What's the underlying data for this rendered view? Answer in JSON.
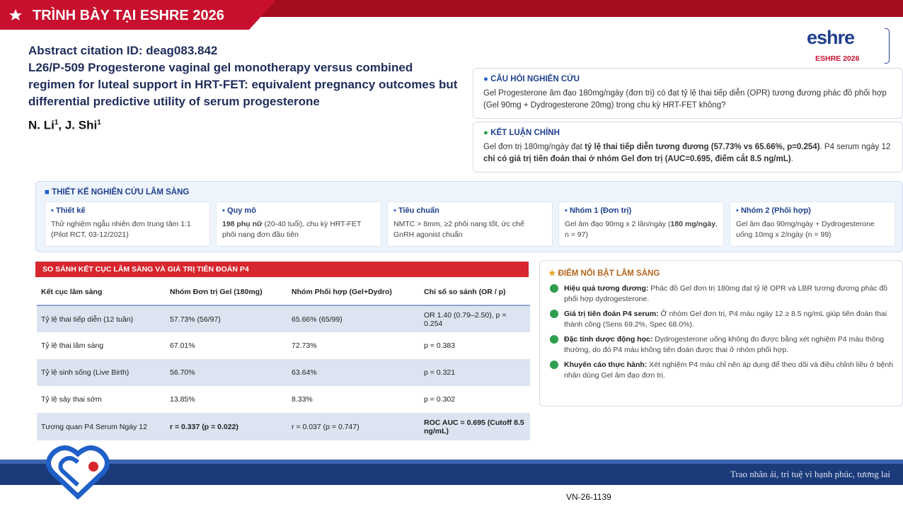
{
  "header": {
    "badge": "TRÌNH BÀY TẠI ESHRE 2026",
    "logo_word": "eshre",
    "logo_caption": "ESHRE 2026"
  },
  "abstract": {
    "citation": "Abstract citation ID: deag083.842",
    "title": "L26/P-509 Progesterone vaginal gel monotherapy versus combined regimen for luteal support in HRT-FET: equivalent pregnancy outcomes but differential predictive utility of serum progesterone",
    "authors": [
      {
        "text": "N. Li",
        "sup": "1"
      },
      {
        "text": ", J. Shi",
        "sup": "1"
      }
    ]
  },
  "question": {
    "title": "CÂU HỎI NGHIÊN CỨU",
    "text": "Gel Progesterone âm đạo 180mg/ngày (đơn trị) có đạt tỷ lệ thai tiếp diễn (OPR) tương đương phác đồ phối hợp (Gel 90mg + Dydrogesterone 20mg) trong chu kỳ HRT-FET không?"
  },
  "conclusion": {
    "title": "KẾT LUẬN CHÍNH",
    "runs": [
      {
        "text": "Gel đơn trị 180mg/ngày đạt "
      },
      {
        "text": "tỷ lệ thai tiếp diễn tương đương (57.73% vs 65.66%, p=0.254)",
        "bold": true
      },
      {
        "text": ". P4 serum ngày 12 "
      },
      {
        "text": "chỉ có giá trị tiên đoán thai ở nhóm Gel đơn trị (AUC=0.695, điểm cắt 8.5 ng/mL)",
        "bold": true
      },
      {
        "text": "."
      }
    ]
  },
  "design": {
    "title": "THIẾT KẾ NGHIÊN CỨU LÂM SÀNG",
    "cards": [
      {
        "title": "Thiết kế",
        "runs": [
          {
            "text": "Thử nghiệm ngẫu nhiên đơn trung tâm 1:1 (Pilot RCT, 03-12/2021)"
          }
        ]
      },
      {
        "title": "Quy mô",
        "runs": [
          {
            "text": "198 phụ nữ",
            "bold": true
          },
          {
            "text": " (20-40 tuổi), chu kỳ HRT-FET phôi nang đơn đầu tiên"
          }
        ]
      },
      {
        "title": "Tiêu chuẩn",
        "runs": [
          {
            "text": "NMTC > 8mm, ≥2 phôi nang tốt, ức chế GnRH agonist chuẩn"
          }
        ]
      },
      {
        "title": "Nhóm 1 (Đơn trị)",
        "runs": [
          {
            "text": "Gel âm đạo 90mg x 2 lần/ngày ("
          },
          {
            "text": "180 mg/ngày",
            "bold": true
          },
          {
            "text": ", n = 97)"
          }
        ]
      },
      {
        "title": "Nhóm 2 (Phối hợp)",
        "runs": [
          {
            "text": "Gel âm đạo 90mg/ngày + Dydrogesterone uống 10mg x 2/ngày (n = 99)"
          }
        ]
      }
    ]
  },
  "table": {
    "title": "SO SÁNH KẾT CỤC LÂM SÀNG VÀ GIÁ TRỊ TIÊN ĐOÁN P4",
    "headers": [
      "Kết cục lâm sàng",
      "Nhóm Đơn trị Gel (180mg)",
      "Nhóm Phối hợp (Gel+Dydro)",
      "Chỉ số so sánh (OR / p)"
    ],
    "rows": [
      [
        "Tỷ lệ thai tiếp diễn (12 tuần)",
        "57.73% (56/97)",
        "65.66% (65/99)",
        "OR 1.40 (0.79–2.50), p = 0.254"
      ],
      [
        "Tỷ lệ thai lâm sàng",
        "67.01%",
        "72.73%",
        "p = 0.383"
      ],
      [
        "Tỷ lệ sinh sống (Live Birth)",
        "56.70%",
        "63.64%",
        "p = 0.321"
      ],
      [
        "Tỷ lệ sảy thai sớm",
        "13.85%",
        "8.33%",
        "p = 0.302"
      ],
      [
        "Tương quan P4 Serum Ngày 12",
        "r = 0.337 (p = 0.022)",
        "r = 0.037 (p = 0.747)",
        "ROC AUC = 0.695 (Cutoff 8.5 ng/mL)"
      ]
    ],
    "bold_cells": [
      [
        4,
        1
      ],
      [
        4,
        3
      ]
    ]
  },
  "highlights": {
    "title": "ĐIỂM NỔI BẬT LÂM SÀNG",
    "items": [
      {
        "label": "Hiệu quả tương đương:",
        "text": " Phác đồ Gel đơn trị 180mg đạt tỷ lệ OPR và LBR tương đương phác đồ phối hợp dydrogesterone."
      },
      {
        "label": "Giá trị tiên đoán P4 serum:",
        "text": " Ở nhóm Gel đơn trị, P4 máu ngày 12 ≥ 8.5 ng/mL giúp tiên đoán thai thành công (Sens 69.2%, Spec 68.0%)."
      },
      {
        "label": "Đặc tính dược động học:",
        "text": " Dydrogesterone uống không đo được bằng xét nghiệm P4 máu thông thường, do đó P4 máu không tiên đoán được thai ở nhóm phối hợp."
      },
      {
        "label": "Khuyến cáo thực hành:",
        "text": " Xét nghiệm P4 máu chỉ nên áp dụng để theo dõi và điều chỉnh liều ở bệnh nhân dùng Gel âm đạo đơn trị."
      }
    ]
  },
  "footer": {
    "slogan": "Trao nhân ái, trí tuệ vì hạnh phúc, tương lai",
    "code": "VN-26-1139"
  }
}
